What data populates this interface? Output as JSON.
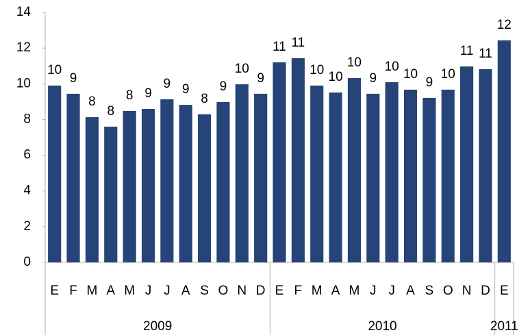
{
  "chart_data": {
    "type": "bar",
    "groups": [
      {
        "name": "2009",
        "categories": [
          "E",
          "F",
          "M",
          "A",
          "M",
          "J",
          "J",
          "A",
          "S",
          "O",
          "N",
          "D"
        ]
      },
      {
        "name": "2010",
        "categories": [
          "E",
          "F",
          "M",
          "A",
          "M",
          "J",
          "J",
          "A",
          "S",
          "O",
          "N",
          "D"
        ]
      },
      {
        "name": "2011",
        "categories": [
          "E"
        ]
      }
    ],
    "values": [
      9.9,
      9.44,
      8.13,
      7.6,
      8.48,
      8.59,
      9.13,
      8.82,
      8.29,
      8.98,
      9.97,
      9.44,
      11.2,
      11.43,
      9.9,
      9.51,
      10.32,
      9.44,
      10.09,
      9.67,
      9.21,
      9.67,
      10.97,
      10.82,
      12.43
    ],
    "value_labels": [
      "10",
      "9",
      "8",
      "8",
      "8",
      "9",
      "9",
      "9",
      "8",
      "9",
      "10",
      "9",
      "11",
      "11",
      "10",
      "10",
      "10",
      "9",
      "10",
      "10",
      "9",
      "10",
      "11",
      "11",
      "12"
    ],
    "color": "#264478",
    "ylim": [
      0,
      14
    ],
    "yticks": [
      0,
      2,
      4,
      6,
      8,
      10,
      12,
      14
    ],
    "grid": false
  }
}
